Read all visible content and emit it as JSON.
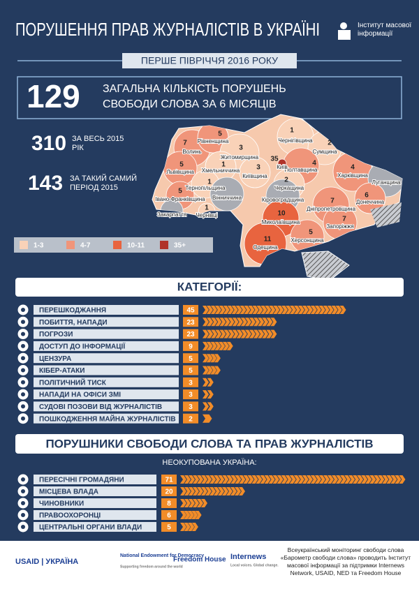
{
  "header": {
    "title": "ПОРУШЕННЯ ПРАВ ЖУРНАЛІСТІВ В УКРАЇНІ",
    "logo_text": "Інститут масової інформації",
    "period": "ПЕРШЕ ПІВРІЧЧЯ 2016 РОКУ"
  },
  "summary": {
    "total": {
      "value": 129,
      "label": "ЗАГАЛЬНА КІЛЬКІСТЬ ПОРУШЕНЬ СВОБОДИ СЛОВА ЗА 6 МІСЯЦІВ"
    },
    "year_2015": {
      "value": 310,
      "label": "ЗА ВЕСЬ 2015 РІК"
    },
    "same_period_2015": {
      "value": 143,
      "label": "ЗА ТАКИЙ САМИЙ ПЕРІОД 2015"
    }
  },
  "map": {
    "regions": [
      {
        "name": "Волинь",
        "value": 7,
        "color": "#f0957a"
      },
      {
        "name": "Рівненщина",
        "value": 5,
        "color": "#f0957a"
      },
      {
        "name": "Житомирщина",
        "value": 3,
        "color": "#f9d2b8"
      },
      {
        "name": "Чернігівщина",
        "value": 1,
        "color": "#f9d2b8"
      },
      {
        "name": "Сумщина",
        "value": 2,
        "color": "#f9d2b8"
      },
      {
        "name": "Львівщина",
        "value": 5,
        "color": "#f0957a"
      },
      {
        "name": "Хмельниччина",
        "value": 1,
        "color": "#f9d2b8"
      },
      {
        "name": "Київщина",
        "value": 3,
        "color": "#f9d2b8"
      },
      {
        "name": "Полтавщина",
        "value": 4,
        "color": "#f0957a"
      },
      {
        "name": "Харківщина",
        "value": 4,
        "color": "#f0957a"
      },
      {
        "name": "Луганщина",
        "value": null,
        "color": "#a9acb3"
      },
      {
        "name": "Тернопільщина",
        "value": 1,
        "color": "#f9d2b8"
      },
      {
        "name": "Черкащина",
        "value": 2,
        "color": "#f9d2b8"
      },
      {
        "name": "Вінниччина",
        "value": null,
        "color": "#a9acb3"
      },
      {
        "name": "Кіровоградщина",
        "value": null,
        "color": "#a9acb3"
      },
      {
        "name": "Івано-Франківщина",
        "value": 5,
        "color": "#f0957a"
      },
      {
        "name": "Закарпаття",
        "value": null,
        "color": "#a9acb3"
      },
      {
        "name": "Чернівці",
        "value": 1,
        "color": "#f9d2b8"
      },
      {
        "name": "Дніпропетровщина",
        "value": 7,
        "color": "#f0957a"
      },
      {
        "name": "Донеччина",
        "value": 6,
        "color": "#f0957a"
      },
      {
        "name": "Запоріжжя",
        "value": 7,
        "color": "#f0957a"
      },
      {
        "name": "Миколаївщина",
        "value": 10,
        "color": "#e8643f"
      },
      {
        "name": "Херсонщина",
        "value": 5,
        "color": "#f0957a"
      },
      {
        "name": "Одещина",
        "value": 11,
        "color": "#e8643f"
      },
      {
        "name": "Київ",
        "value": 35,
        "color": "#b0332a"
      }
    ],
    "legend": [
      {
        "label": "1-3",
        "color": "#f9d2b8"
      },
      {
        "label": "4-7",
        "color": "#f0957a"
      },
      {
        "label": "10-11",
        "color": "#e8643f"
      },
      {
        "label": "35+",
        "color": "#b0332a"
      }
    ]
  },
  "categories": {
    "title": "КАТЕГОРІЇ:",
    "items": [
      {
        "label": "ПЕРЕШКОДЖАННЯ",
        "value": 45
      },
      {
        "label": "ПОБИТТЯ, НАПАДИ",
        "value": 23
      },
      {
        "label": "ПОГРОЗИ",
        "value": 23
      },
      {
        "label": "ДОСТУП ДО ІНФОРМАЦІЇ",
        "value": 9
      },
      {
        "label": "ЦЕНЗУРА",
        "value": 5
      },
      {
        "label": "КІБЕР-АТАКИ",
        "value": 5
      },
      {
        "label": "ПОЛІТИЧНИЙ ТИСК",
        "value": 3
      },
      {
        "label": "НАПАДИ НА ОФІСИ ЗМІ",
        "value": 3
      },
      {
        "label": "СУДОВІ ПОЗОВИ ВІД ЖУРНАЛІСТІВ",
        "value": 3
      },
      {
        "label": "ПОШКОДЖЕННЯ МАЙНА ЖУРНАЛІСТІВ",
        "value": 2
      }
    ]
  },
  "violators": {
    "title": "ПОРУШНИКИ СВОБОДИ СЛОВА ТА ПРАВ ЖУРНАЛІСТІВ",
    "subtitle": "НЕОКУПОВАНА УКРАЇНА:",
    "items": [
      {
        "label": "ПЕРЕСІЧНІ ГРОМАДЯНИ",
        "value": 71
      },
      {
        "label": "МІСЦЕВА ВЛАДА",
        "value": 20
      },
      {
        "label": "ЧИНОВНИКИ",
        "value": 8
      },
      {
        "label": "ПРАВООХОРОНЦІ",
        "value": 6
      },
      {
        "label": "ЦЕНТРАЛЬНІ ОРГАНИ ВЛАДИ",
        "value": 5
      }
    ]
  },
  "footer": {
    "logos": [
      "USAID | УКРАЇНА",
      "National Endowment for Democracy",
      "Supporting freedom around the world",
      "Freedom House",
      "Internews",
      "Local voices. Global change."
    ],
    "note": "Всеукраїнський моніторинг свободи слова «Барометр свободи слова» проводить Інститут масової інформації за підтримки Internews Network, USAID, NED та Freedom House"
  }
}
